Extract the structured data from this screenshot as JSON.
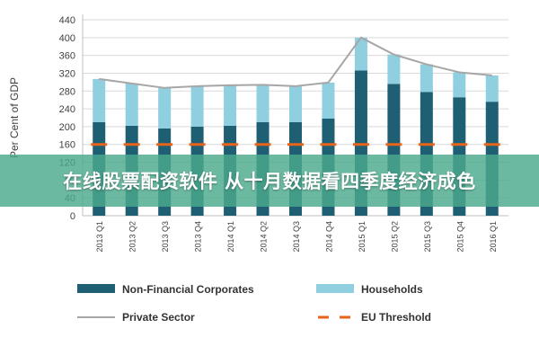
{
  "banner": {
    "text": "在线股票配资软件 从十月数据看四季度经济成色"
  },
  "chart_data": {
    "type": "bar",
    "ylabel": "Per Cent of GDP",
    "ylim": [
      0,
      440
    ],
    "yticks": [
      0,
      40,
      80,
      120,
      160,
      200,
      240,
      280,
      320,
      360,
      400,
      440
    ],
    "categories": [
      "2013 Q1",
      "2013 Q2",
      "2013 Q3",
      "2013 Q4",
      "2014 Q1",
      "2014 Q2",
      "2014 Q3",
      "2014 Q4",
      "2015 Q1",
      "2015 Q2",
      "2015 Q3",
      "2015 Q4",
      "2016 Q1"
    ],
    "series": [
      {
        "name": "Non-Financial Corporates",
        "kind": "stacked-bar",
        "color": "#1e5f74",
        "values": [
          210,
          202,
          196,
          200,
          202,
          210,
          210,
          218,
          326,
          296,
          278,
          266,
          256
        ]
      },
      {
        "name": "Households",
        "kind": "stacked-bar",
        "color": "#90cfe0",
        "values": [
          97,
          95,
          91,
          91,
          91,
          84,
          81,
          81,
          74,
          66,
          62,
          56,
          59
        ]
      },
      {
        "name": "Private Sector",
        "kind": "line",
        "color": "#a6a6a6",
        "values": [
          307,
          297,
          287,
          291,
          293,
          294,
          291,
          299,
          400,
          362,
          340,
          322,
          315
        ]
      },
      {
        "name": "EU Threshold",
        "kind": "dashed-line",
        "color": "#e8641b",
        "values": [
          160,
          160,
          160,
          160,
          160,
          160,
          160,
          160,
          160,
          160,
          160,
          160,
          160
        ]
      }
    ],
    "grid": true,
    "legend_position": "bottom"
  }
}
